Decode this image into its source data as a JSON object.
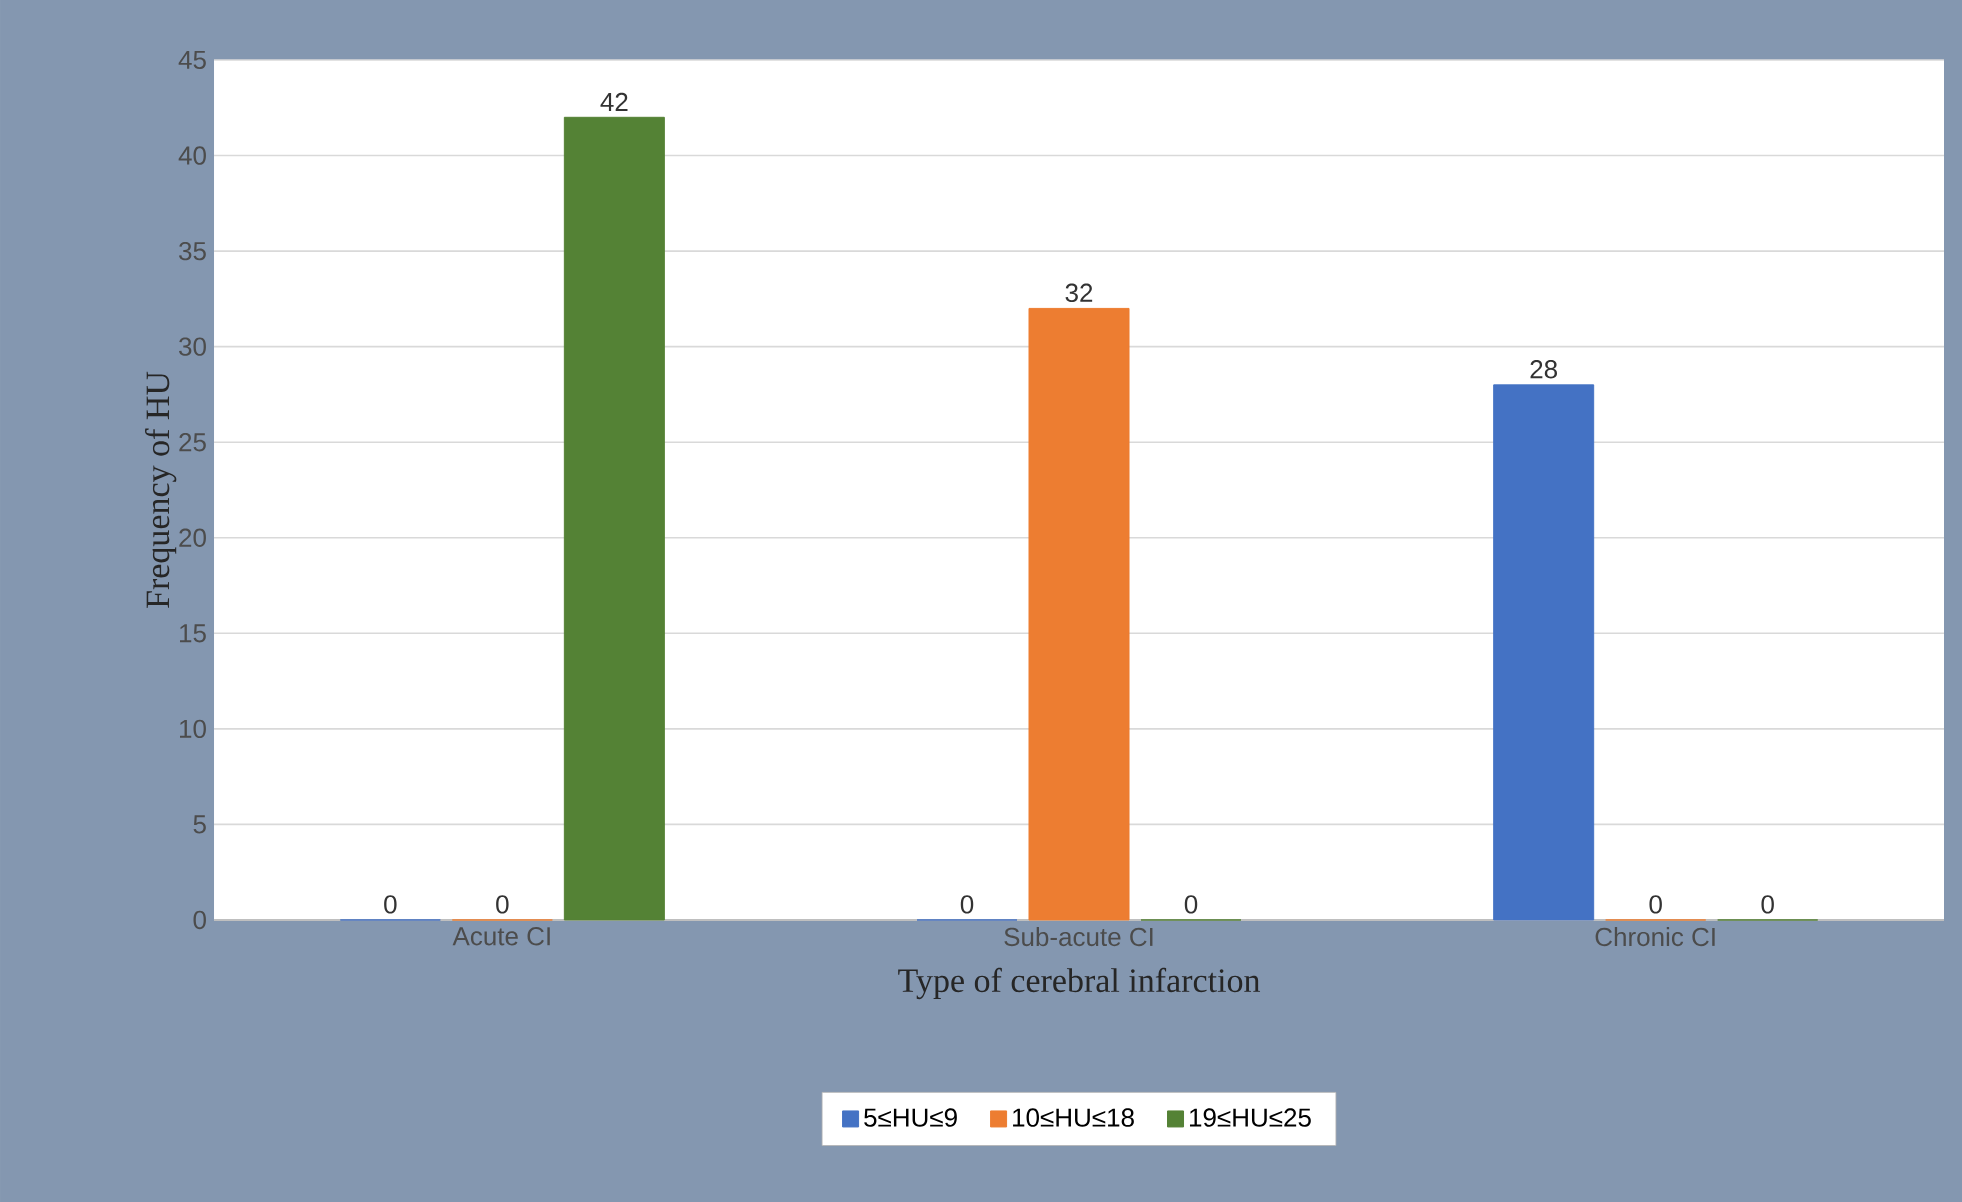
{
  "chart_data": {
    "type": "bar",
    "xlabel": "Type of cerebral infarction",
    "ylabel": "Frequency of HU",
    "categories": [
      "Acute CI",
      "Sub-acute CI",
      "Chronic CI"
    ],
    "series": [
      {
        "name": "5≤HU≤9",
        "color": "#4472c4",
        "values": [
          0,
          0,
          28
        ]
      },
      {
        "name": "10≤HU≤18",
        "color": "#ed7d31",
        "values": [
          0,
          32,
          0
        ]
      },
      {
        "name": "19≤HU≤25",
        "color": "#548235",
        "values": [
          42,
          0,
          0
        ]
      }
    ],
    "ylim": [
      0,
      45
    ],
    "yticks": [
      0,
      5,
      10,
      15,
      20,
      25,
      30,
      35,
      40,
      45
    ],
    "grid": "y",
    "legend": "bottom",
    "data_labels": true
  }
}
